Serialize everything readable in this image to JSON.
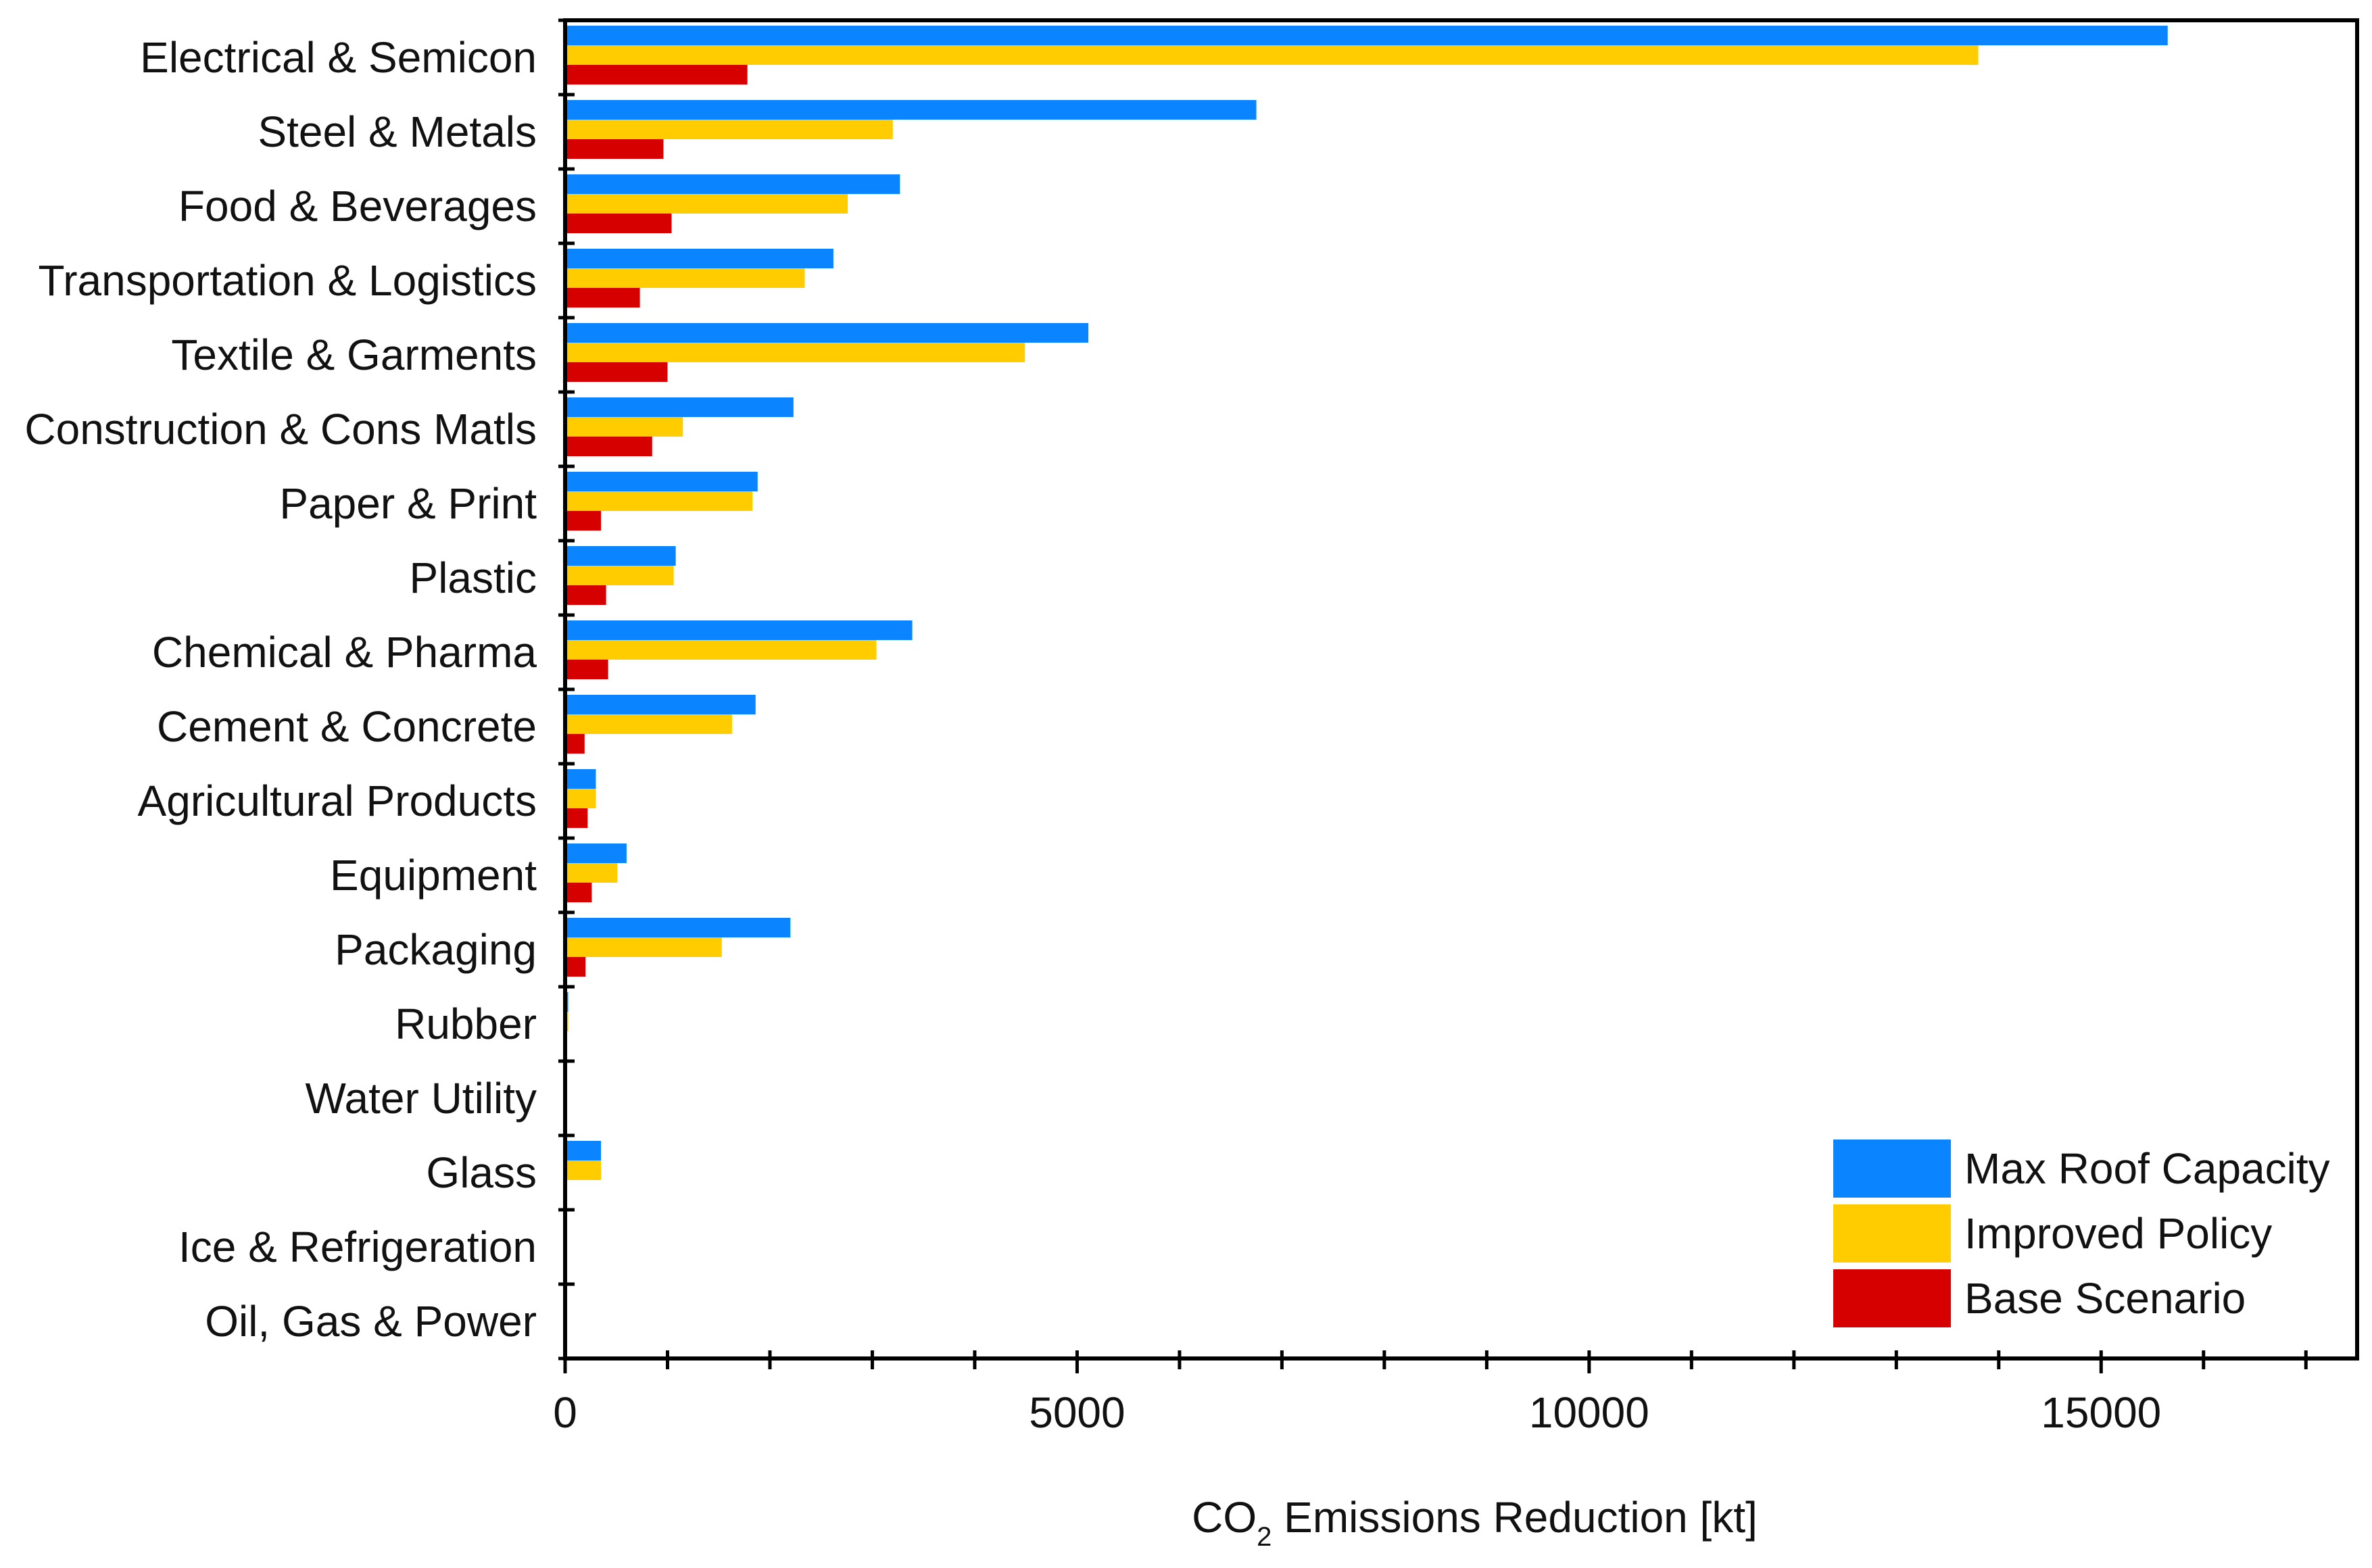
{
  "chart_data": {
    "type": "bar",
    "orientation": "horizontal",
    "title": "",
    "xlabel": "CO₂ Emissions Reduction [kt]",
    "xlabel_parts": {
      "prefix": "CO",
      "subscript": "2",
      "suffix": " Emissions Reduction [kt]"
    },
    "ylabel": "",
    "xlim": [
      0,
      17500
    ],
    "xticks": [
      0,
      5000,
      10000,
      15000
    ],
    "xtick_labels": [
      "0",
      "5000",
      "10000",
      "15000"
    ],
    "minor_tick_step": 1000,
    "grid": false,
    "legend_position": "bottom-right",
    "categories": [
      "Electrical & Semicon",
      "Steel & Metals",
      "Food & Beverages",
      "Transportation & Logistics",
      "Textile & Garments",
      "Construction & Cons Matls",
      "Paper & Print",
      "Plastic",
      "Chemical & Pharma",
      "Cement & Concrete",
      "Agricultural Products",
      "Equipment",
      "Packaging",
      "Rubber",
      "Water Utility",
      "Glass",
      "Ice & Refrigeration",
      "Oil, Gas & Power"
    ],
    "series": [
      {
        "name": "Max Roof Capacity",
        "color": "#0a84ff",
        "values": [
          15650,
          6750,
          3270,
          2620,
          5110,
          2230,
          1880,
          1080,
          3390,
          1860,
          300,
          600,
          2200,
          30,
          0,
          350,
          0,
          0
        ]
      },
      {
        "name": "Improved Policy",
        "color": "#ffcc00",
        "values": [
          13800,
          3200,
          2760,
          2340,
          4490,
          1150,
          1830,
          1060,
          3040,
          1630,
          300,
          510,
          1530,
          30,
          0,
          350,
          0,
          0
        ]
      },
      {
        "name": "Base Scenario",
        "color": "#d60000",
        "values": [
          1780,
          960,
          1040,
          730,
          1000,
          850,
          350,
          400,
          420,
          190,
          220,
          260,
          200,
          0,
          0,
          0,
          0,
          0
        ]
      }
    ]
  }
}
